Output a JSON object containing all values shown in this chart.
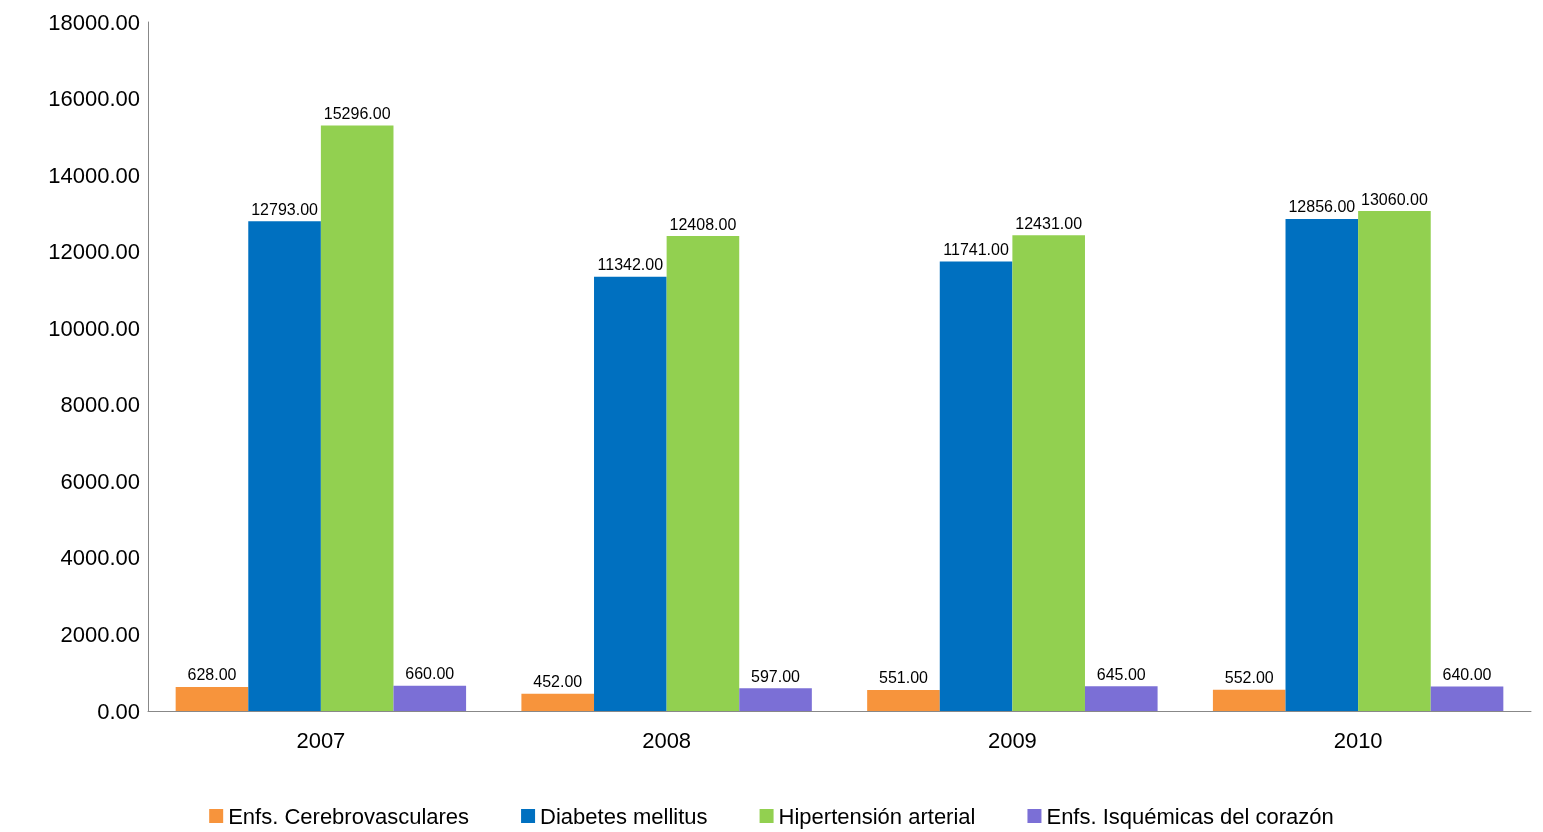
{
  "chart_data": {
    "type": "bar",
    "categories": [
      "2007",
      "2008",
      "2009",
      "2010"
    ],
    "series": [
      {
        "name": "Enfs. Cerebrovasculares",
        "color": "#f7943c",
        "values": [
          628,
          452,
          551,
          552
        ],
        "value_labels": [
          "628.00",
          "452.00",
          "551.00",
          "552.00"
        ]
      },
      {
        "name": "Diabetes mellitus",
        "color": "#0070c0",
        "values": [
          12793,
          11342,
          11741,
          12856
        ],
        "value_labels": [
          "12793.00",
          "11342.00",
          "11741.00",
          "12856.00"
        ]
      },
      {
        "name": "Hipertensión arterial",
        "color": "#92d050",
        "values": [
          15296,
          12408,
          12431,
          13060
        ],
        "value_labels": [
          "15296.00",
          "12408.00",
          "12431.00",
          "13060.00"
        ]
      },
      {
        "name": "Enfs. Isquémicas del corazón",
        "color": "#7b6fd6",
        "values": [
          660,
          597,
          645,
          640
        ],
        "value_labels": [
          "660.00",
          "597.00",
          "645.00",
          "640.00"
        ]
      }
    ],
    "ylim": [
      0,
      18000
    ],
    "yticks": [
      {
        "value": 0,
        "label": "0.00"
      },
      {
        "value": 2000,
        "label": "2000.00"
      },
      {
        "value": 4000,
        "label": "4000.00"
      },
      {
        "value": 6000,
        "label": "6000.00"
      },
      {
        "value": 8000,
        "label": "8000.00"
      },
      {
        "value": 10000,
        "label": "10000.00"
      },
      {
        "value": 12000,
        "label": "12000.00"
      },
      {
        "value": 14000,
        "label": "14000.00"
      },
      {
        "value": 16000,
        "label": "16000.00"
      },
      {
        "value": 18000,
        "label": "18000.00"
      }
    ],
    "grid": false,
    "legend": "bottom"
  }
}
